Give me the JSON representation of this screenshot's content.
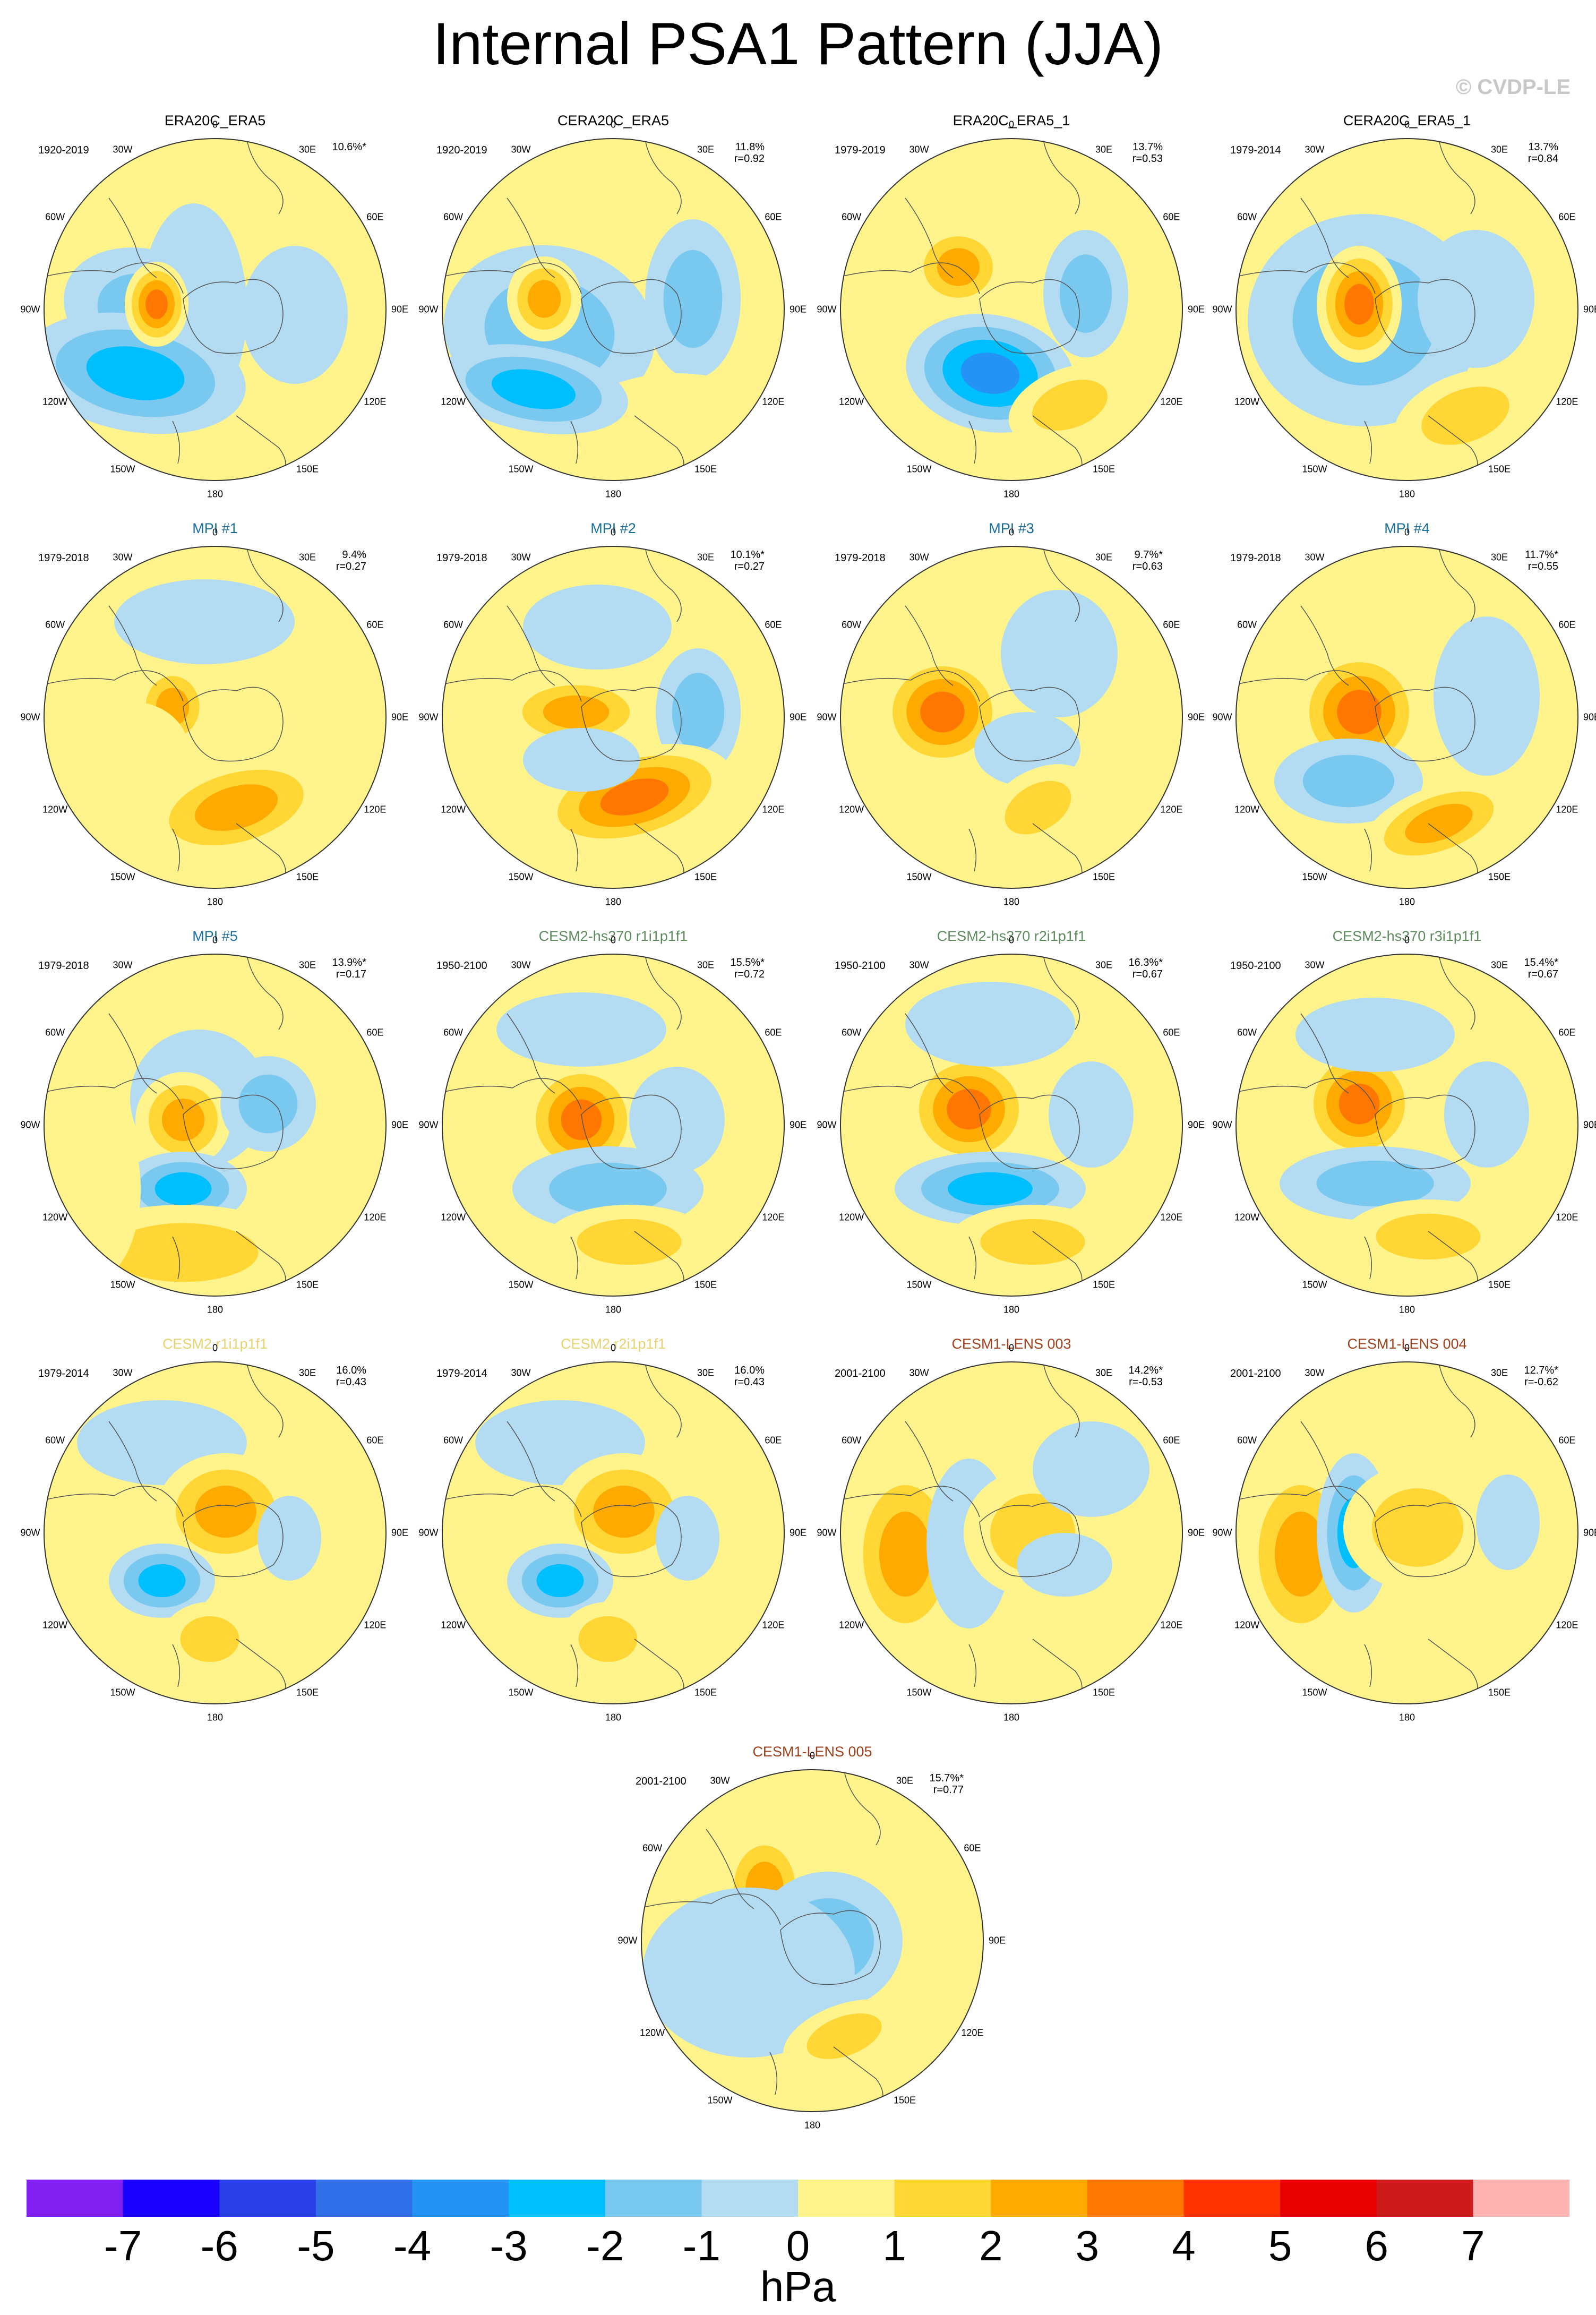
{
  "title": "Internal PSA1 Pattern (JJA)",
  "credit": "© CVDP-LE",
  "units": "hPa",
  "colorbar": {
    "ticks": [
      "-7",
      "-6",
      "-5",
      "-4",
      "-3",
      "-2",
      "-1",
      "0",
      "1",
      "2",
      "3",
      "4",
      "5",
      "6",
      "7"
    ],
    "colors": [
      "#7f1ff0",
      "#1a00ff",
      "#2a3ee6",
      "#2f6fe8",
      "#2493f5",
      "#00bfff",
      "#78c8f0",
      "#b3dcf2",
      "#fff48c",
      "#ffd633",
      "#ffaa00",
      "#ff7700",
      "#ff3300",
      "#e60000",
      "#cc1a1a",
      "#ffb3b3"
    ]
  },
  "map_labels": {
    "lon_0": "0",
    "lon_30e": "30E",
    "lon_60e": "60E",
    "lon_90e": "90E",
    "lon_120e": "120E",
    "lon_150e": "150E",
    "lon_180": "180",
    "lon_150w": "150W",
    "lon_120w": "120W",
    "lon_90w": "90W",
    "lon_60w": "60W",
    "lon_30w": "30W"
  },
  "panels": [
    {
      "title": "ERA20C_ERA5",
      "title_color": "#000000",
      "years": "1920-2019",
      "pct": "10.6%*",
      "r": ""
    },
    {
      "title": "CERA20C_ERA5",
      "title_color": "#000000",
      "years": "1920-2019",
      "pct": "11.8%",
      "r": "r=0.92"
    },
    {
      "title": "ERA20C_ERA5_1",
      "title_color": "#000000",
      "years": "1979-2019",
      "pct": "13.7%",
      "r": "r=0.53"
    },
    {
      "title": "CERA20C_ERA5_1",
      "title_color": "#000000",
      "years": "1979-2014",
      "pct": "13.7%",
      "r": "r=0.84"
    },
    {
      "title": "MPI #1",
      "title_color": "#1a6e9c",
      "years": "1979-2018",
      "pct": "9.4%",
      "r": "r=0.27"
    },
    {
      "title": "MPI #2",
      "title_color": "#1a6e9c",
      "years": "1979-2018",
      "pct": "10.1%*",
      "r": "r=0.27"
    },
    {
      "title": "MPI #3",
      "title_color": "#1a6e9c",
      "years": "1979-2018",
      "pct": "9.7%*",
      "r": "r=0.63"
    },
    {
      "title": "MPI #4",
      "title_color": "#1a6e9c",
      "years": "1979-2018",
      "pct": "11.7%*",
      "r": "r=0.55"
    },
    {
      "title": "MPI #5",
      "title_color": "#1a6e9c",
      "years": "1979-2018",
      "pct": "13.9%*",
      "r": "r=0.17"
    },
    {
      "title": "CESM2-hs370 r1i1p1f1",
      "title_color": "#5b8a5b",
      "years": "1950-2100",
      "pct": "15.5%*",
      "r": "r=0.72"
    },
    {
      "title": "CESM2-hs370 r2i1p1f1",
      "title_color": "#5b8a5b",
      "years": "1950-2100",
      "pct": "16.3%*",
      "r": "r=0.67"
    },
    {
      "title": "CESM2-hs370 r3i1p1f1",
      "title_color": "#5b8a5b",
      "years": "1950-2100",
      "pct": "15.4%*",
      "r": "r=0.67"
    },
    {
      "title": "CESM2 r1i1p1f1",
      "title_color": "#e6d26e",
      "years": "1979-2014",
      "pct": "16.0%",
      "r": "r=0.43"
    },
    {
      "title": "CESM2 r2i1p1f1",
      "title_color": "#e6d26e",
      "years": "1979-2014",
      "pct": "16.0%",
      "r": "r=0.43"
    },
    {
      "title": "CESM1-LENS 003",
      "title_color": "#a0401a",
      "years": "2001-2100",
      "pct": "14.2%*",
      "r": "r=-0.53"
    },
    {
      "title": "CESM1-LENS 004",
      "title_color": "#a0401a",
      "years": "2001-2100",
      "pct": "12.7%*",
      "r": "r=-0.62"
    },
    {
      "title": "CESM1-LENS 005",
      "title_color": "#a0401a",
      "years": "2001-2100",
      "pct": "15.7%*",
      "r": "r=0.77"
    }
  ]
}
